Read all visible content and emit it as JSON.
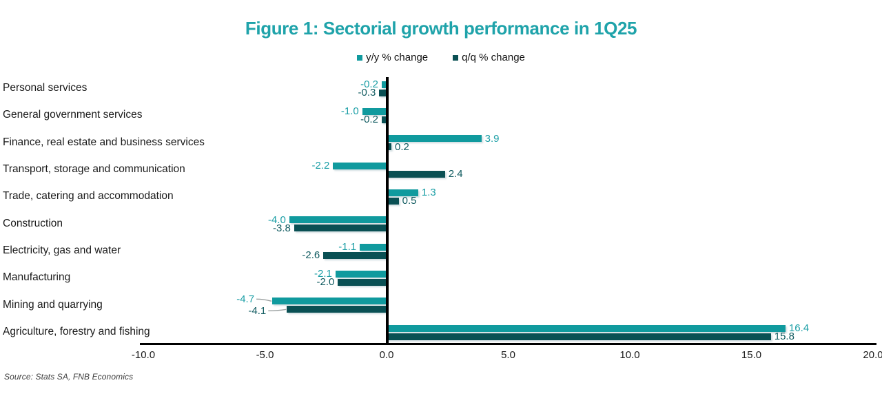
{
  "figure": {
    "title": "Figure 1: Sectorial growth performance in 1Q25",
    "source": "Source: Stats SA, FNB Economics"
  },
  "colors": {
    "title": "#1FA3AA",
    "yy_bar": "#109A9E",
    "yy_label": "#1C9FA6",
    "qq_bar": "#0A5054",
    "qq_label": "#0F5A5F",
    "axis": "#000000",
    "leader_line": "#9aa0a0"
  },
  "chart_data": {
    "type": "bar",
    "orientation": "horizontal",
    "title": "Figure 1: Sectorial growth performance in 1Q25",
    "source": "Source: Stats SA, FNB Economics",
    "categories": [
      "Personal services",
      "General government services",
      "Finance, real estate and business services",
      "Transport, storage and communication",
      "Trade, catering and accommodation",
      "Construction",
      "Electricity, gas and water",
      "Manufacturing",
      "Mining and quarrying",
      "Agriculture, forestry and fishing"
    ],
    "series": [
      {
        "name": "y/y % change",
        "values": [
          -0.2,
          -1.0,
          3.9,
          -2.2,
          1.3,
          -4.0,
          -1.1,
          -2.1,
          -4.7,
          16.4
        ]
      },
      {
        "name": "q/q % change",
        "values": [
          -0.3,
          -0.2,
          0.2,
          2.4,
          0.5,
          -3.8,
          -2.6,
          -2.0,
          -4.1,
          15.8
        ]
      }
    ],
    "x_ticks": [
      -10.0,
      -5.0,
      0.0,
      5.0,
      10.0,
      15.0,
      20.0
    ],
    "xlim": [
      -10.1,
      20.1
    ],
    "value_labels": true,
    "label_decimals": 1,
    "legend_position": "top-center",
    "grid": false,
    "label_callouts": [
      {
        "category": "Mining and quarrying",
        "series": "y/y % change"
      },
      {
        "category": "Mining and quarrying",
        "series": "q/q % change"
      }
    ]
  }
}
